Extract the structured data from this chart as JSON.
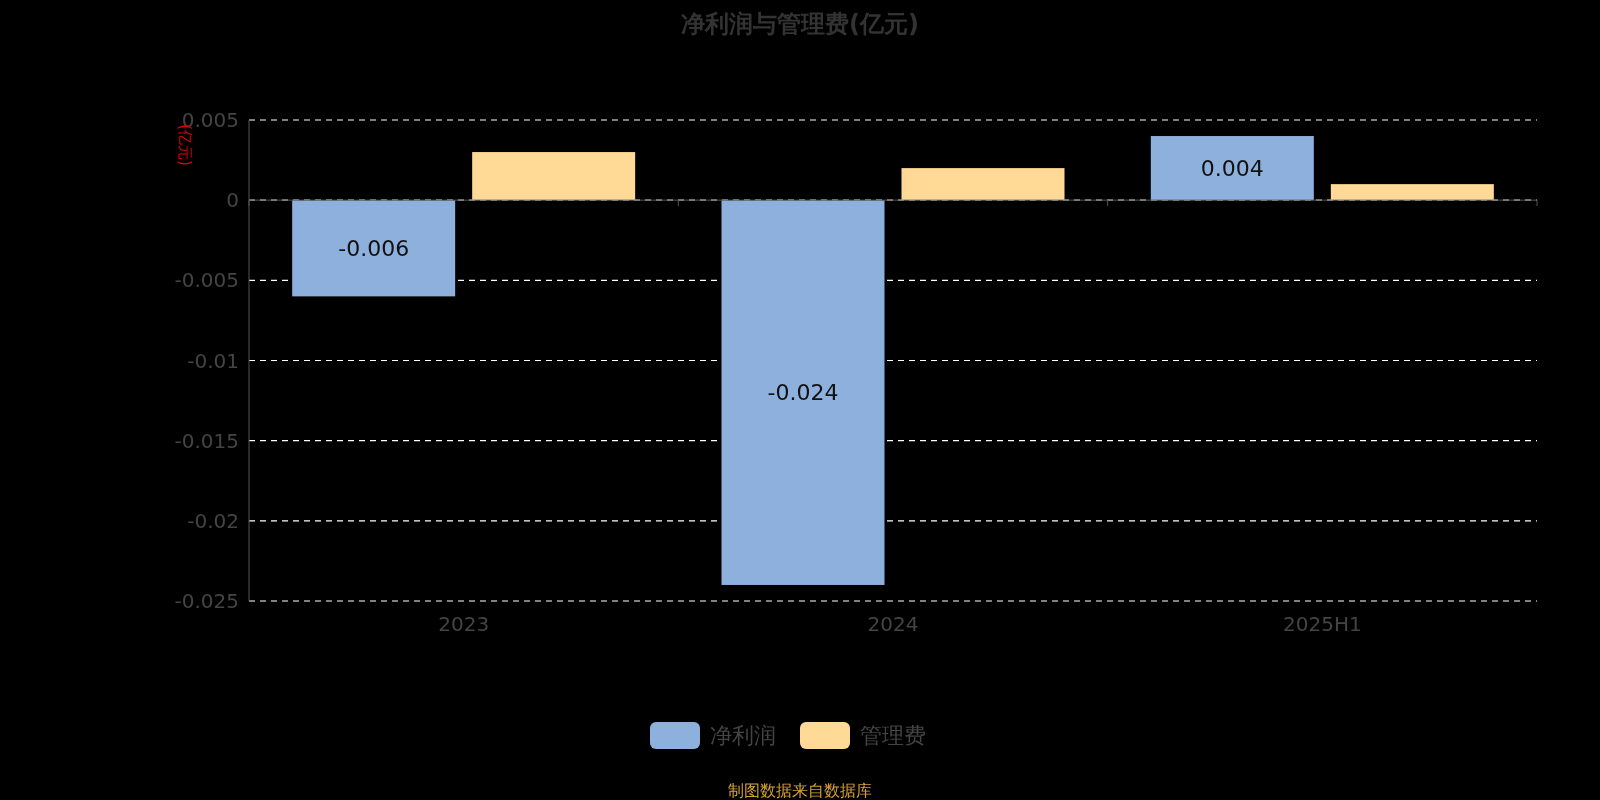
{
  "chart_data": {
    "type": "bar",
    "title": "净利润与管理费(亿元)",
    "ylabel": "(亿元)",
    "categories": [
      "2023",
      "2024",
      "2025H1"
    ],
    "series": [
      {
        "name": "净利润",
        "color": "#8eb0dc",
        "values": [
          -0.006,
          -0.024,
          0.004
        ],
        "value_labels": [
          "-0.006",
          "-0.024",
          "0.004"
        ]
      },
      {
        "name": "管理费",
        "color": "#ffd995",
        "values": [
          0.003,
          0.002,
          0.001
        ]
      }
    ],
    "ylim": [
      -0.025,
      0.005
    ],
    "yticks": [
      0.005,
      0,
      -0.005,
      -0.01,
      -0.015,
      -0.02,
      -0.025
    ],
    "grid": "y",
    "legend": "bottom",
    "annotations": [
      "制图数据来自数据库"
    ]
  }
}
